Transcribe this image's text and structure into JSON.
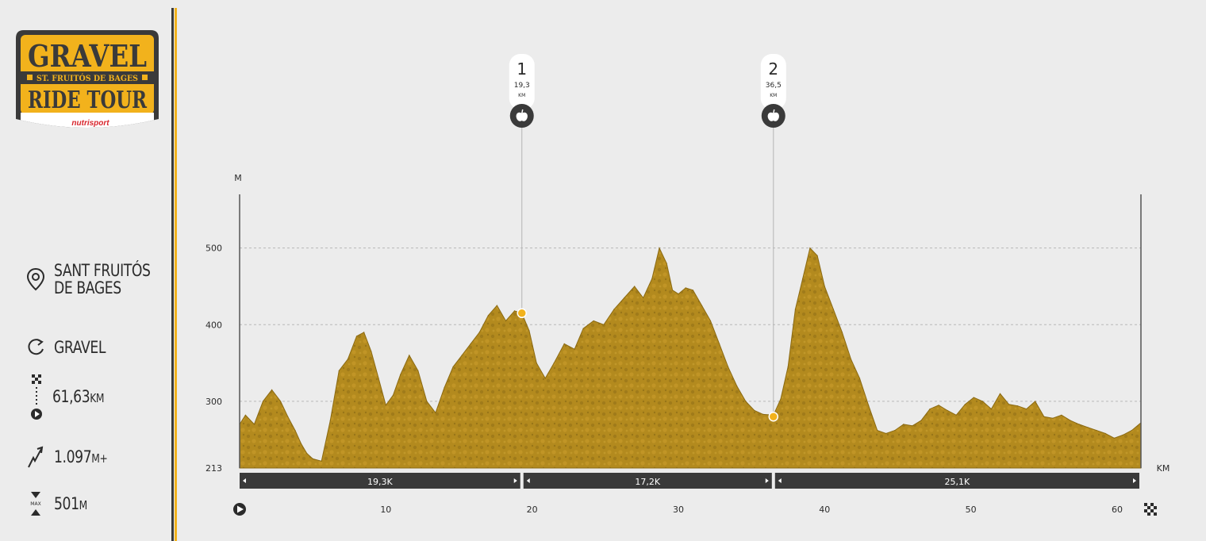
{
  "logo": {
    "line1": "GRAVEL",
    "line2": "ST. FRUITÓS DE BAGES",
    "line3": "RIDE TOUR",
    "brand": "nutrisport",
    "colors": {
      "frame": "#3a3a3a",
      "fill": "#f2b21c",
      "text": "#3a3a3a",
      "brand": "#d8262d"
    }
  },
  "stats": {
    "location_line1": "SANT FRUITÓS",
    "location_line2": "DE BAGES",
    "type": "GRAVEL",
    "distance": "61,63",
    "distance_unit": "KM",
    "climb": "1.097",
    "climb_unit": "M+",
    "max": "501",
    "max_unit": "M",
    "max_icon_label": "MAX",
    "icons": [
      "location-pin-icon",
      "loop-arrow-icon",
      "start-finish-icon",
      "climb-arrow-icon",
      "max-altitude-icon"
    ]
  },
  "chart_data": {
    "type": "area",
    "ylabel": "M",
    "xlabel": "KM",
    "ylim": [
      213,
      570
    ],
    "xlim": [
      0,
      61.63
    ],
    "y_ticks": [
      213,
      300,
      400,
      500
    ],
    "x_ticks": [
      10,
      20,
      30,
      40,
      50,
      60
    ],
    "grid": true,
    "fill_color": "#b38a1e",
    "accent_color": "#f2b21c",
    "x": [
      0,
      0.4,
      1.0,
      1.6,
      2.2,
      2.8,
      3.3,
      3.8,
      4.2,
      4.6,
      5.0,
      5.6,
      6.2,
      6.8,
      7.4,
      8.0,
      8.5,
      9.0,
      9.5,
      10.0,
      10.5,
      11.0,
      11.6,
      12.2,
      12.8,
      13.4,
      14.0,
      14.6,
      15.2,
      15.8,
      16.4,
      17.0,
      17.6,
      18.2,
      18.8,
      19.3,
      19.8,
      20.3,
      20.9,
      21.5,
      22.2,
      22.9,
      23.5,
      24.2,
      24.9,
      25.6,
      26.3,
      27.0,
      27.6,
      28.2,
      28.7,
      29.2,
      29.6,
      30.0,
      30.5,
      31.0,
      31.6,
      32.2,
      32.8,
      33.4,
      34.0,
      34.6,
      35.2,
      35.8,
      36.5,
      37.0,
      37.5,
      38.0,
      38.5,
      39.0,
      39.5,
      40.0,
      40.6,
      41.2,
      41.8,
      42.4,
      43.0,
      43.6,
      44.2,
      44.8,
      45.4,
      46.0,
      46.6,
      47.2,
      47.8,
      48.4,
      49.0,
      49.6,
      50.2,
      50.8,
      51.4,
      52.0,
      52.6,
      53.2,
      53.8,
      54.4,
      55.0,
      55.6,
      56.2,
      56.8,
      57.4,
      58.0,
      58.6,
      59.2,
      59.8,
      60.4,
      61.0,
      61.63
    ],
    "y": [
      270,
      282,
      270,
      300,
      315,
      300,
      280,
      262,
      245,
      232,
      225,
      222,
      275,
      340,
      355,
      385,
      390,
      365,
      330,
      295,
      308,
      335,
      360,
      340,
      300,
      285,
      318,
      345,
      360,
      375,
      390,
      412,
      425,
      405,
      418,
      415,
      392,
      350,
      330,
      350,
      375,
      368,
      395,
      405,
      400,
      420,
      435,
      450,
      435,
      460,
      500,
      480,
      445,
      440,
      448,
      445,
      425,
      405,
      375,
      345,
      320,
      300,
      288,
      283,
      282,
      303,
      345,
      420,
      460,
      500,
      490,
      450,
      420,
      390,
      355,
      330,
      295,
      262,
      258,
      262,
      270,
      268,
      275,
      290,
      295,
      288,
      282,
      296,
      305,
      300,
      290,
      310,
      296,
      294,
      290,
      300,
      280,
      278,
      282,
      275,
      270,
      266,
      262,
      258,
      252,
      256,
      262,
      272
    ],
    "stops": [
      {
        "number": "1",
        "km": 19.3,
        "km_label": "19,3",
        "unit": "KM",
        "elevation": 415,
        "icon": "apple-icon"
      },
      {
        "number": "2",
        "km": 36.5,
        "km_label": "36,5",
        "unit": "KM",
        "elevation": 280,
        "icon": "apple-icon"
      }
    ],
    "segments": [
      {
        "from": 0,
        "to": 19.3,
        "label": "19,3K"
      },
      {
        "from": 19.3,
        "to": 36.5,
        "label": "17,2K"
      },
      {
        "from": 36.5,
        "to": 61.63,
        "label": "25,1K"
      }
    ]
  }
}
